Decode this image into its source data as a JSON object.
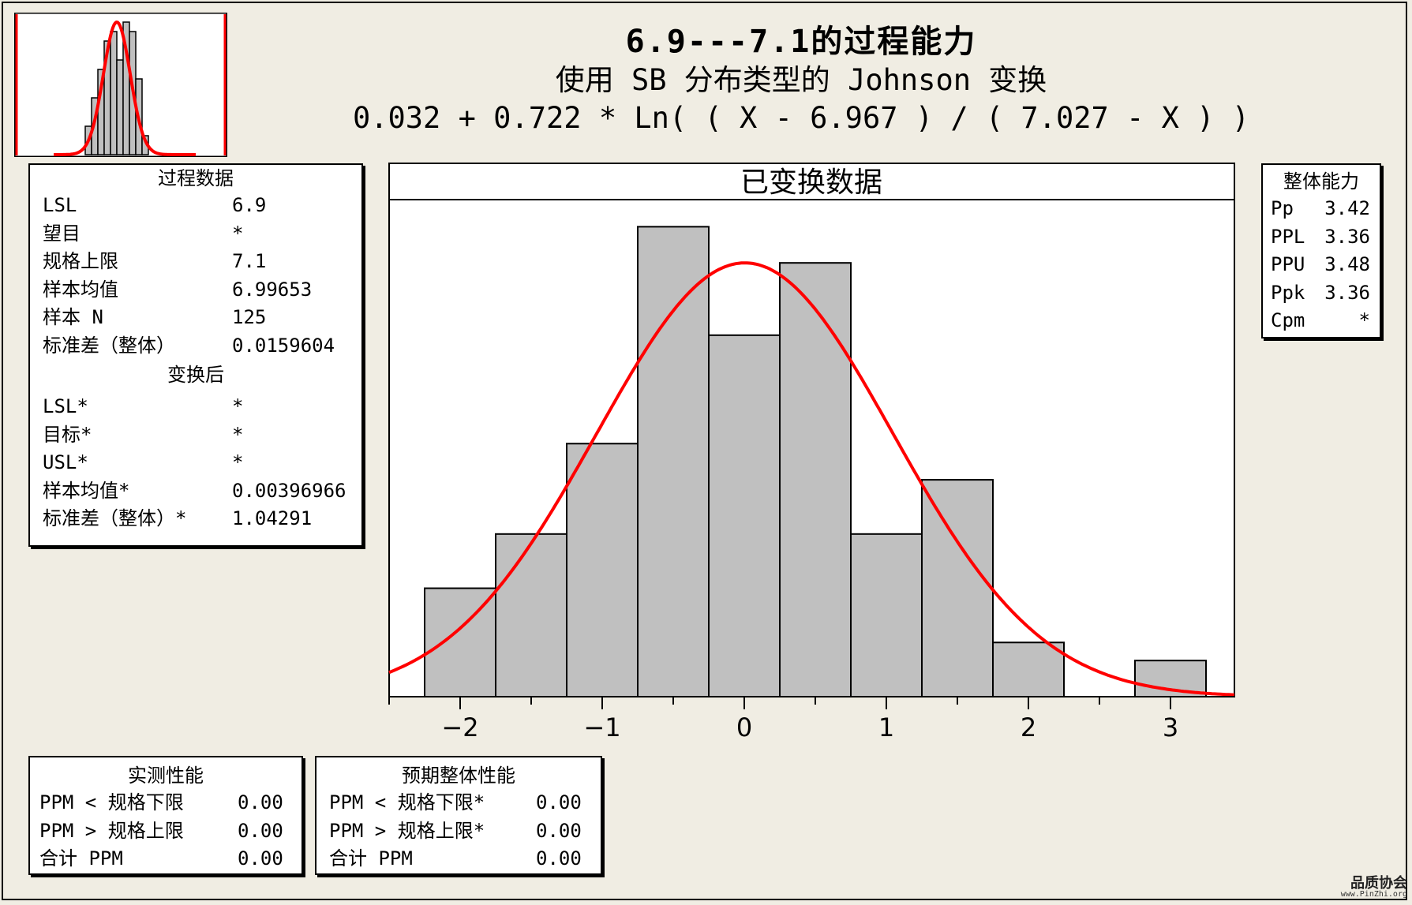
{
  "title": "6.9---7.1的过程能力",
  "subtitle": "使用 SB 分布类型的 Johnson 变换",
  "formula": "0.032 + 0.722 * Ln( ( X - 6.967 ) / ( 7.027 - X ) )",
  "colors": {
    "bar_fill": "#c0c0c0",
    "curve": "#ff0000",
    "background": "#f0ede3",
    "spec_line": "#ff0000"
  },
  "process_data": {
    "header": "过程数据",
    "rows": [
      {
        "label": "LSL",
        "value": "6.9"
      },
      {
        "label": "望目",
        "value": "*"
      },
      {
        "label": "规格上限",
        "value": "7.1"
      },
      {
        "label": "样本均值",
        "value": "6.99653"
      },
      {
        "label": "样本 N",
        "value": "125"
      },
      {
        "label": "标准差（整体）",
        "value": "0.0159604"
      }
    ],
    "transformed_header": "变换后",
    "transformed_rows": [
      {
        "label": "LSL*",
        "value": "*"
      },
      {
        "label": "目标*",
        "value": "*"
      },
      {
        "label": "USL*",
        "value": "*"
      },
      {
        "label": "样本均值*",
        "value": "0.00396966"
      },
      {
        "label": "标准差（整体）*",
        "value": "1.04291"
      }
    ]
  },
  "overall_capability": {
    "header": "整体能力",
    "rows": [
      {
        "label": "Pp",
        "value": "3.42"
      },
      {
        "label": "PPL",
        "value": "3.36"
      },
      {
        "label": "PPU",
        "value": "3.48"
      },
      {
        "label": "Ppk",
        "value": "3.36"
      },
      {
        "label": "Cpm",
        "value": "*"
      }
    ]
  },
  "observed_performance": {
    "header": "实测性能",
    "rows": [
      {
        "label": "PPM < 规格下限",
        "value": "0.00"
      },
      {
        "label": "PPM > 规格上限",
        "value": "0.00"
      },
      {
        "label": "合计 PPM",
        "value": "0.00"
      }
    ]
  },
  "expected_performance": {
    "header": "预期整体性能",
    "rows": [
      {
        "label": "PPM < 规格下限*",
        "value": "0.00"
      },
      {
        "label": "PPM > 规格上限*",
        "value": "0.00"
      },
      {
        "label": "合计 PPM",
        "value": "0.00"
      }
    ]
  },
  "chart_data": [
    {
      "type": "bar",
      "title": "已变换数据",
      "xlim": [
        -2.5,
        3.45
      ],
      "xticks": [
        -2,
        -1,
        0,
        1,
        2,
        3
      ],
      "xtick_labels": [
        "−2",
        "−1",
        "0",
        "1",
        "2",
        "3"
      ],
      "bin_width": 0.5,
      "bin_centers": [
        -2.0,
        -1.5,
        -1.0,
        -0.5,
        0.0,
        0.5,
        1.0,
        1.5,
        2.0,
        2.5,
        3.0
      ],
      "values": [
        6,
        9,
        14,
        26,
        20,
        24,
        9,
        12,
        3,
        0,
        2
      ],
      "ylim": [
        0,
        27.5
      ],
      "curve": {
        "type": "normal",
        "mean": 0.00396966,
        "sd": 1.04291,
        "peak": 24
      }
    },
    {
      "type": "bar",
      "title": "",
      "note": "thumbnail histogram of original data with spec limits",
      "values": [
        6,
        12,
        18,
        24,
        26,
        20,
        28,
        26,
        16,
        4
      ],
      "spec_limits": [
        "LSL",
        "USL"
      ],
      "curve": {
        "type": "normal"
      }
    }
  ]
}
